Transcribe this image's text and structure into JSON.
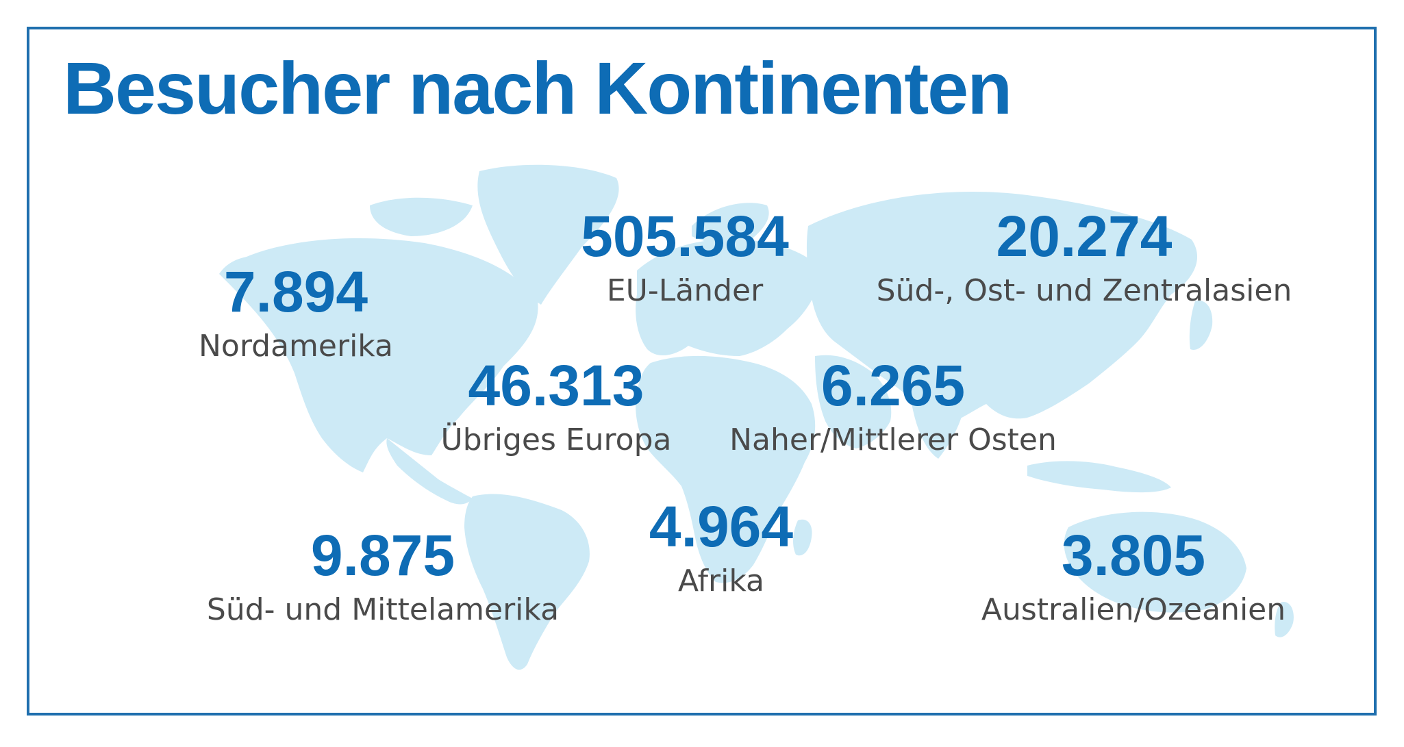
{
  "title": "Besucher nach Kontinenten",
  "colors": {
    "accent": "#0e6cb5",
    "frame": "#1f6fae",
    "map": "#cdeaf6",
    "label": "#4a4a4a"
  },
  "regions": [
    {
      "id": "nordamerika",
      "value": "7.894",
      "label": "Nordamerika"
    },
    {
      "id": "eu",
      "value": "505.584",
      "label": "EU-Länder"
    },
    {
      "id": "asien",
      "value": "20.274",
      "label": "Süd-, Ost- und Zentralasien"
    },
    {
      "id": "uebriges-europa",
      "value": "46.313",
      "label": "Übriges Europa"
    },
    {
      "id": "nahost",
      "value": "6.265",
      "label": "Naher/Mittlerer Osten"
    },
    {
      "id": "afrika",
      "value": "4.964",
      "label": "Afrika"
    },
    {
      "id": "suedamerika",
      "value": "9.875",
      "label": "Süd- und Mittelamerika"
    },
    {
      "id": "australien",
      "value": "3.805",
      "label": "Australien/Ozeanien"
    }
  ]
}
